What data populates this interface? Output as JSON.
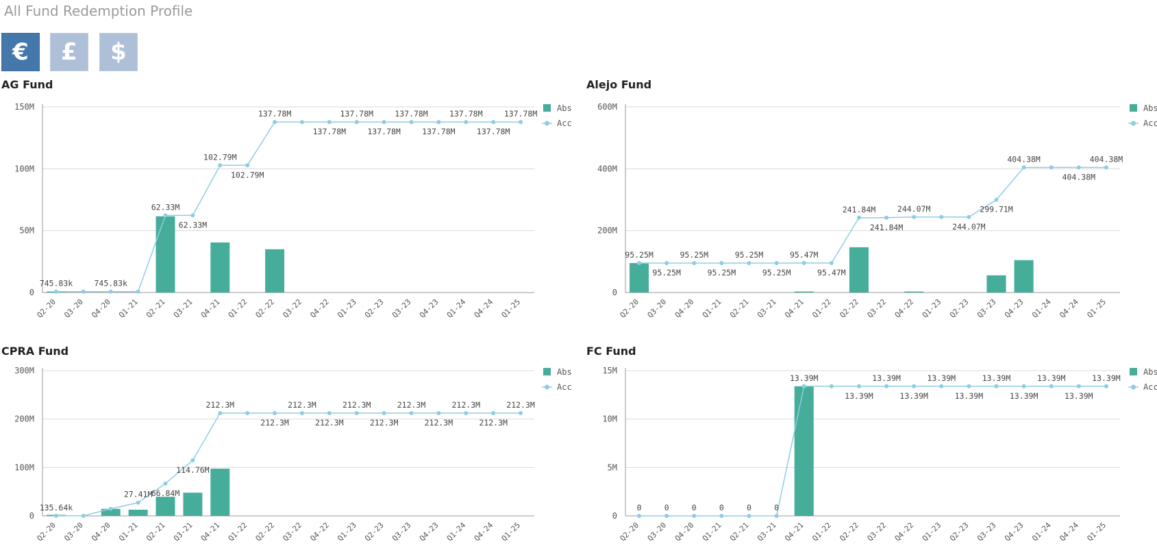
{
  "page": {
    "title": "All Fund Redemption Profile"
  },
  "currency": {
    "buttons": [
      {
        "symbol": "€",
        "active": true
      },
      {
        "symbol": "£",
        "active": false
      },
      {
        "symbol": "$",
        "active": false
      }
    ]
  },
  "colors": {
    "abs": "#45ad9a",
    "acc": "#8dcde4",
    "grid": "#d9d9d9",
    "axis": "#999999"
  },
  "chart_data": [
    {
      "type": "bar",
      "title": "AG Fund",
      "categories": [
        "Q2-20",
        "Q3-20",
        "Q4-20",
        "Q1-21",
        "Q2-21",
        "Q3-21",
        "Q4-21",
        "Q1-22",
        "Q2-22",
        "Q3-22",
        "Q4-22",
        "Q1-23",
        "Q2-23",
        "Q3-23",
        "Q4-23",
        "Q1-24",
        "Q4-24",
        "Q1-25"
      ],
      "yticks": [
        0,
        50000000,
        100000000,
        150000000
      ],
      "ytick_labels": [
        "0",
        "50M",
        "100M",
        "150M"
      ],
      "ylim": [
        0,
        150000000
      ],
      "legend": [
        "Abs",
        "Acc"
      ],
      "legend_position": "top-right",
      "grid": true,
      "series": [
        {
          "name": "Abs",
          "type": "bar",
          "values": [
            745830,
            0,
            0,
            0,
            61580000,
            0,
            40460000,
            0,
            34990000,
            0,
            0,
            0,
            0,
            0,
            0,
            0,
            0,
            0
          ]
        },
        {
          "name": "Acc",
          "type": "line",
          "values": [
            745830,
            745830,
            745830,
            745830,
            62330000,
            62330000,
            102790000,
            102790000,
            137780000,
            137780000,
            137780000,
            137780000,
            137780000,
            137780000,
            137780000,
            137780000,
            137780000,
            137780000
          ],
          "labels": [
            "745.83k",
            null,
            "745.83k",
            null,
            "62.33M",
            "62.33M",
            "102.79M",
            "102.79M",
            "137.78M",
            null,
            "137.78M",
            "137.78M",
            "137.78M",
            "137.78M",
            "137.78M",
            "137.78M",
            "137.78M",
            "137.78M"
          ],
          "label_pos": [
            "above",
            null,
            "above",
            null,
            "above",
            "below",
            "above",
            "below",
            "above",
            null,
            "below",
            "above",
            "below",
            "above",
            "below",
            "above",
            "below",
            "above"
          ]
        }
      ]
    },
    {
      "type": "bar",
      "title": "Alejo Fund",
      "categories": [
        "Q2-20",
        "Q3-20",
        "Q4-20",
        "Q1-21",
        "Q2-21",
        "Q3-21",
        "Q4-21",
        "Q1-22",
        "Q2-22",
        "Q3-22",
        "Q4-22",
        "Q1-23",
        "Q2-23",
        "Q3-23",
        "Q4-23",
        "Q1-24",
        "Q4-24",
        "Q1-25"
      ],
      "yticks": [
        0,
        200000000,
        400000000,
        600000000
      ],
      "ytick_labels": [
        "0",
        "200M",
        "400M",
        "600M"
      ],
      "ylim": [
        0,
        600000000
      ],
      "legend": [
        "Abs",
        "Acc"
      ],
      "legend_position": "top-right",
      "grid": true,
      "series": [
        {
          "name": "Abs",
          "type": "bar",
          "values": [
            95250000,
            0,
            0,
            0,
            0,
            0,
            220000,
            0,
            146370000,
            0,
            2230000,
            0,
            0,
            55640000,
            104670000,
            0,
            0,
            0
          ]
        },
        {
          "name": "Acc",
          "type": "line",
          "values": [
            95250000,
            95250000,
            95250000,
            95250000,
            95250000,
            95250000,
            95470000,
            95470000,
            241840000,
            241840000,
            244070000,
            244070000,
            244070000,
            299710000,
            404380000,
            404380000,
            404380000,
            404380000
          ],
          "labels": [
            "95.25M",
            "95.25M",
            "95.25M",
            "95.25M",
            "95.25M",
            "95.25M",
            "95.47M",
            "95.47M",
            "241.84M",
            "241.84M",
            "244.07M",
            null,
            "244.07M",
            "299.71M",
            "404.38M",
            null,
            "404.38M",
            "404.38M"
          ],
          "label_pos": [
            "above",
            "below",
            "above",
            "below",
            "above",
            "below",
            "above",
            "below",
            "above",
            "below",
            "above",
            null,
            "below",
            "below",
            "above",
            null,
            "below",
            "above"
          ]
        }
      ]
    },
    {
      "type": "bar",
      "title": "CPRA Fund",
      "categories": [
        "Q2-20",
        "Q3-20",
        "Q4-20",
        "Q1-21",
        "Q2-21",
        "Q3-21",
        "Q4-21",
        "Q1-22",
        "Q2-22",
        "Q3-22",
        "Q4-22",
        "Q1-23",
        "Q2-23",
        "Q3-23",
        "Q4-23",
        "Q1-24",
        "Q4-24",
        "Q1-25"
      ],
      "yticks": [
        0,
        100000000,
        200000000,
        300000000
      ],
      "ytick_labels": [
        "0",
        "100M",
        "200M",
        "300M"
      ],
      "ylim": [
        0,
        300000000
      ],
      "legend": [
        "Abs",
        "Acc"
      ],
      "legend_position": "top-right",
      "grid": true,
      "series": [
        {
          "name": "Abs",
          "type": "bar",
          "values": [
            135640,
            0,
            14500000,
            12800000,
            39430000,
            47900000,
            97540000,
            0,
            0,
            0,
            0,
            0,
            0,
            0,
            0,
            0,
            0,
            0
          ]
        },
        {
          "name": "Acc",
          "type": "line",
          "values": [
            135640,
            135640,
            14640000,
            27410000,
            66840000,
            114760000,
            212300000,
            212300000,
            212300000,
            212300000,
            212300000,
            212300000,
            212300000,
            212300000,
            212300000,
            212300000,
            212300000,
            212300000
          ],
          "labels": [
            "135.64k",
            null,
            null,
            "27.41M",
            "66.84M",
            "114.76M",
            "212.3M",
            null,
            "212.3M",
            "212.3M",
            "212.3M",
            "212.3M",
            "212.3M",
            "212.3M",
            "212.3M",
            "212.3M",
            "212.3M",
            "212.3M"
          ],
          "label_pos": [
            "above",
            null,
            null,
            "above",
            "below",
            "below",
            "above",
            null,
            "below",
            "above",
            "below",
            "above",
            "below",
            "above",
            "below",
            "above",
            "below",
            "above"
          ]
        }
      ]
    },
    {
      "type": "bar",
      "title": "FC Fund",
      "categories": [
        "Q2-20",
        "Q3-20",
        "Q4-20",
        "Q1-21",
        "Q2-21",
        "Q3-21",
        "Q4-21",
        "Q1-22",
        "Q2-22",
        "Q3-22",
        "Q4-22",
        "Q1-23",
        "Q2-23",
        "Q3-23",
        "Q4-23",
        "Q1-24",
        "Q4-24",
        "Q1-25"
      ],
      "yticks": [
        0,
        5000000,
        10000000,
        15000000
      ],
      "ytick_labels": [
        "0",
        "5M",
        "10M",
        "15M"
      ],
      "ylim": [
        0,
        15000000
      ],
      "legend": [
        "Abs",
        "Acc"
      ],
      "legend_position": "top-right",
      "grid": true,
      "series": [
        {
          "name": "Abs",
          "type": "bar",
          "values": [
            0,
            0,
            0,
            0,
            0,
            0,
            13390000,
            0,
            0,
            0,
            0,
            0,
            0,
            0,
            0,
            0,
            0,
            0
          ]
        },
        {
          "name": "Acc",
          "type": "line",
          "values": [
            0,
            0,
            0,
            0,
            0,
            0,
            13390000,
            13390000,
            13390000,
            13390000,
            13390000,
            13390000,
            13390000,
            13390000,
            13390000,
            13390000,
            13390000,
            13390000
          ],
          "labels": [
            "0",
            "0",
            "0",
            "0",
            "0",
            "0",
            "13.39M",
            null,
            "13.39M",
            "13.39M",
            "13.39M",
            "13.39M",
            "13.39M",
            "13.39M",
            "13.39M",
            "13.39M",
            "13.39M",
            "13.39M"
          ],
          "label_pos": [
            "above",
            "above",
            "above",
            "above",
            "above",
            "above",
            "above",
            null,
            "below",
            "above",
            "below",
            "above",
            "below",
            "above",
            "below",
            "above",
            "below",
            "above"
          ]
        }
      ]
    }
  ]
}
